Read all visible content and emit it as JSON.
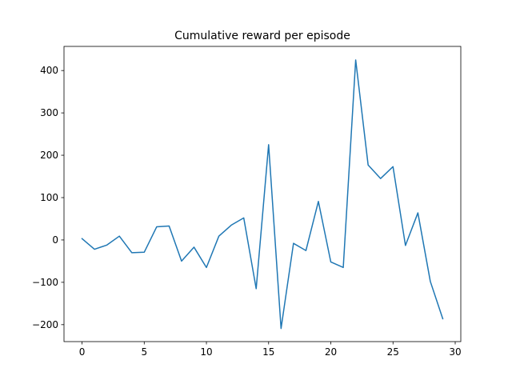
{
  "chart_data": {
    "type": "line",
    "title": "Cumulative reward per episode",
    "xlabel": "",
    "ylabel": "",
    "xlim": [
      -1.45,
      30.45
    ],
    "ylim": [
      -240,
      457
    ],
    "x_ticks": [
      0,
      5,
      10,
      15,
      20,
      25,
      30
    ],
    "y_ticks": [
      -200,
      -100,
      0,
      100,
      200,
      300,
      400
    ],
    "x_tick_labels": [
      "0",
      "5",
      "10",
      "15",
      "20",
      "25",
      "30"
    ],
    "y_tick_labels": [
      "−200",
      "−100",
      "0",
      "100",
      "200",
      "300",
      "400"
    ],
    "grid": false,
    "line_color": "#1f77b4",
    "series": [
      {
        "x": [
          0,
          1,
          2,
          3,
          4,
          5,
          6,
          7,
          8,
          9,
          10,
          11,
          12,
          13,
          14,
          15,
          16,
          17,
          18,
          19,
          20,
          21,
          22,
          23,
          24,
          25,
          26,
          27,
          28,
          29
        ],
        "y": [
          3,
          -22,
          -12,
          9,
          -30,
          -29,
          31,
          33,
          -50,
          -17,
          -65,
          9,
          35,
          52,
          -115,
          225,
          -209,
          -8,
          -25,
          91,
          -52,
          -65,
          425,
          177,
          145,
          173,
          -13,
          64,
          -98,
          -186
        ]
      }
    ]
  }
}
